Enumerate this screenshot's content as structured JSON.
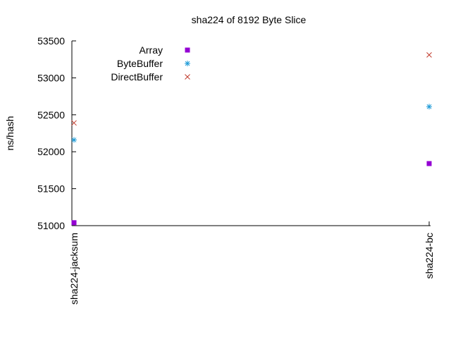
{
  "chart_data": {
    "type": "scatter",
    "title": "sha224 of 8192 Byte Slice",
    "xlabel": "",
    "ylabel": "ns/hash",
    "categories": [
      "sha224-jacksum",
      "sha224-bc"
    ],
    "ylim": [
      51000,
      53500
    ],
    "yticks": [
      51000,
      51500,
      52000,
      52500,
      53000,
      53500
    ],
    "grid": false,
    "legend_position": "top-left",
    "series": [
      {
        "name": "Array",
        "marker": "filled-square",
        "color": "#9400d3",
        "values": [
          51040,
          51840
        ]
      },
      {
        "name": "ByteBuffer",
        "marker": "asterisk",
        "color": "#1e9bd7",
        "values": [
          52160,
          52610
        ]
      },
      {
        "name": "DirectBuffer",
        "marker": "x",
        "color": "#c0392b",
        "values": [
          52390,
          53310
        ]
      }
    ]
  }
}
